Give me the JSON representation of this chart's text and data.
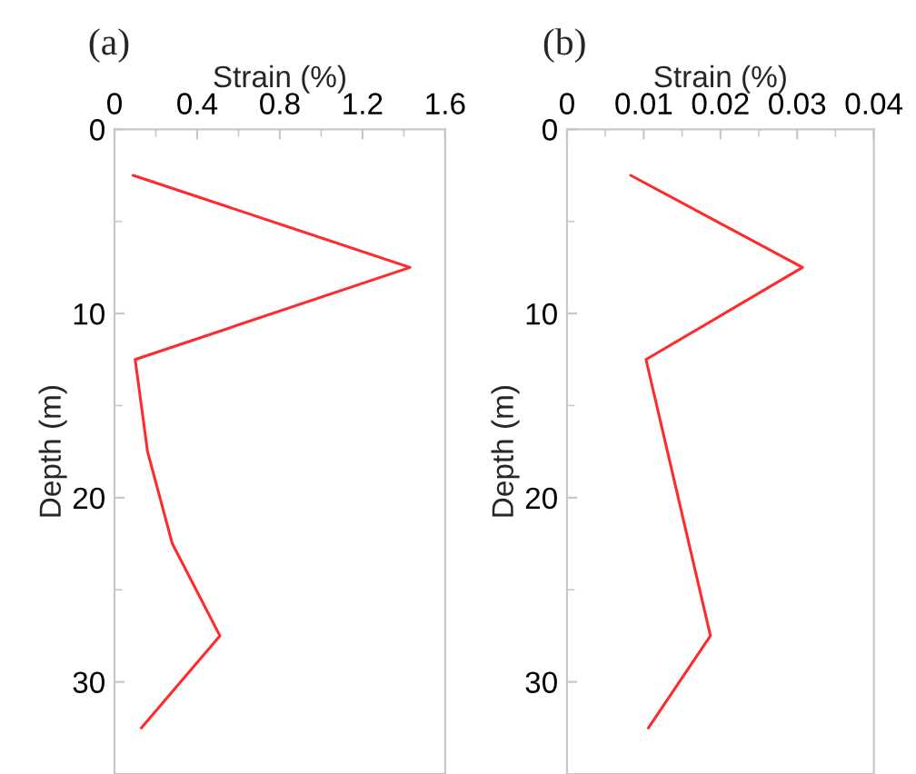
{
  "chart_data": [
    {
      "type": "line",
      "xlabel": "Strain (%)",
      "ylabel": "Depth (m)",
      "annotations": [
        "(a)"
      ],
      "series": [
        {
          "color": "#ff2a2a",
          "x": [
            0.09,
            1.43,
            0.1,
            0.16,
            0.28,
            0.51,
            0.13
          ],
          "values": [
            2.5,
            7.5,
            12.5,
            17.5,
            22.5,
            27.5,
            32.5
          ]
        }
      ],
      "xlim": [
        0,
        1.6
      ],
      "xticks": [
        0,
        0.4,
        0.8,
        1.2,
        1.6
      ],
      "ylim": [
        35,
        0
      ],
      "yticks": [
        0,
        10,
        20,
        30
      ],
      "grid": false,
      "marker": "none",
      "line_style": "solid"
    },
    {
      "type": "line",
      "xlabel": "Strain (%)",
      "ylabel": "Depth (m)",
      "annotations": [
        "(b)"
      ],
      "series": [
        {
          "color": "#ff2a2a",
          "x": [
            0.0083,
            0.0307,
            0.0103,
            0.0131,
            0.0159,
            0.0187,
            0.0106
          ],
          "values": [
            2.5,
            7.5,
            12.5,
            17.5,
            22.5,
            27.5,
            32.5
          ]
        }
      ],
      "xlim": [
        0,
        0.04
      ],
      "xticks": [
        0,
        0.01,
        0.02,
        0.03,
        0.04
      ],
      "ylim": [
        35,
        0
      ],
      "yticks": [
        0,
        10,
        20,
        30
      ],
      "grid": false,
      "marker": "none",
      "line_style": "solid"
    }
  ]
}
